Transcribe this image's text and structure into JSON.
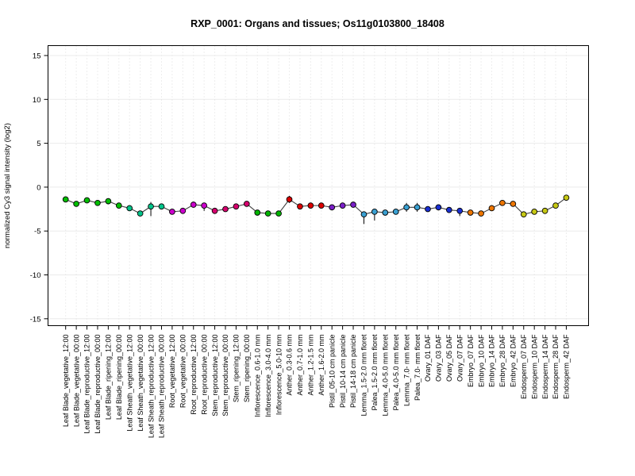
{
  "page_title": "RXP_0001: Organs and tissues; Os11g0103800_18408",
  "chart_data": {
    "type": "line",
    "title": "RXP_0001: Organs and tissues; Os11g0103800_18408",
    "xlabel": "",
    "ylabel": "normalized Cy3 signal intensity (log2)",
    "ylim": [
      -16,
      16
    ],
    "yticks": [
      -15,
      -10,
      -5,
      0,
      5,
      10,
      15
    ],
    "grid": {
      "horizontal": true,
      "vertical": true
    },
    "legend": "none",
    "line_color": "#3F3F3F",
    "error_bar_color": "#000000",
    "categories": [
      "Leaf Blade_vegetative_12:00",
      "Leaf Blade_vegetative_00:00",
      "Leaf Blade_reproductive_12:00",
      "Leaf Blade_reproductive_00:00",
      "Leaf Blade_ripening_12:00",
      "Leaf Blade_ripening_00:00",
      "Leaf Sheath_vegetative_12:00",
      "Leaf Sheath_vegetative_00:00",
      "Leaf Sheath_reproductive_12:00",
      "Leaf Sheath_reproductive_00:00",
      "Root_vegetative_12:00",
      "Root_vegetative_00:00",
      "Root_reproductive_12:00",
      "Root_reproductive_00:00",
      "Stem_reproductive_12:00",
      "Stem_reproductive_00:00",
      "Stem_ripening_12:00",
      "Stem_ripening_00:00",
      "Inflorescence_0.6-1.0 mm",
      "Inflorescence_3.0-4.0 mm",
      "Inflorescence_5.0-10 mm",
      "Anther_0.3-0.6 mm",
      "Anther_0.7-1.0 mm",
      "Anther_1.2-1.5 mm",
      "Anther_1.6-2.0 mm",
      "Pistil_05-10 cm panicle",
      "Pistil_10-14 cm panicle",
      "Pistil_14-18 cm panicle",
      "Lemma_1.5-2.0 mm floret",
      "Palea_1.5-2.0 mm floret",
      "Lemma_4.0-5.0 mm floret",
      "Palea_4.0-5.0 mm floret",
      "Lemma_7.0- mm floret",
      "Palea_7.0- mm floret",
      "Ovary_01 DAF",
      "Ovary_03 DAF",
      "Ovary_05 DAF",
      "Ovary_07 DAF",
      "Embryo_07 DAF",
      "Embryo_10 DAF",
      "Embryo_14 DAF",
      "Embryo_28 DAF",
      "Embryo_42 DAF",
      "Endosperm_07 DAF",
      "Endosperm_10 DAF",
      "Endosperm_14 DAF",
      "Endosperm_28 DAF",
      "Endosperm_42 DAF"
    ],
    "values": [
      -1.4,
      -1.9,
      -1.5,
      -1.8,
      -1.6,
      -2.1,
      -2.4,
      -3.0,
      -2.2,
      -2.2,
      -2.8,
      -2.7,
      -2.0,
      -2.1,
      -2.7,
      -2.5,
      -2.2,
      -1.9,
      -2.9,
      -3.0,
      -3.0,
      -1.4,
      -2.2,
      -2.1,
      -2.1,
      -2.3,
      -2.1,
      -2.0,
      -3.1,
      -2.8,
      -2.9,
      -2.8,
      -2.3,
      -2.3,
      -2.5,
      -2.3,
      -2.6,
      -2.7,
      -2.9,
      -3.0,
      -2.4,
      -1.8,
      -1.9,
      -3.1,
      -2.8,
      -2.7,
      -2.1,
      -1.2
    ],
    "err_up": [
      0.15,
      0.2,
      0.15,
      0.15,
      0.15,
      0.15,
      0.2,
      0.2,
      0.5,
      0.2,
      0.15,
      0.15,
      0.3,
      0.2,
      0.3,
      0.2,
      0.2,
      0.3,
      0.15,
      0.15,
      0.15,
      0.4,
      0.2,
      0.2,
      0.2,
      0.3,
      0.2,
      0.3,
      0.3,
      0.2,
      0.2,
      0.2,
      0.5,
      0.5,
      0.3,
      0.2,
      0.2,
      0.3,
      0.2,
      0.3,
      0.3,
      0.2,
      0.3,
      0.3,
      0.2,
      0.2,
      0.3,
      0.2
    ],
    "err_dn": [
      0.15,
      0.3,
      0.15,
      0.15,
      0.15,
      0.15,
      0.2,
      0.2,
      1.1,
      0.2,
      0.15,
      0.15,
      0.3,
      0.6,
      0.3,
      0.2,
      0.2,
      0.3,
      0.15,
      0.15,
      0.15,
      0.4,
      0.2,
      0.2,
      0.2,
      0.3,
      0.2,
      0.3,
      1.1,
      1.0,
      0.2,
      0.2,
      0.5,
      0.5,
      0.3,
      0.2,
      0.2,
      0.6,
      0.2,
      0.3,
      0.3,
      0.2,
      0.3,
      0.3,
      0.2,
      0.2,
      0.3,
      0.2
    ],
    "marker_colors": [
      "#00BE00",
      "#00BE00",
      "#00BE00",
      "#00BE00",
      "#00BE00",
      "#00BE00",
      "#00C389",
      "#00C389",
      "#00C389",
      "#00C389",
      "#CC00CC",
      "#CC00CC",
      "#CC00CC",
      "#CC00CC",
      "#D6006E",
      "#D6006E",
      "#D6006E",
      "#D6006E",
      "#00B400",
      "#00B400",
      "#00B400",
      "#DC0000",
      "#DC0000",
      "#DC0000",
      "#DC0000",
      "#7A1FC8",
      "#7A1FC8",
      "#7A1FC8",
      "#3AA0D2",
      "#3AA0D2",
      "#3AA0D2",
      "#3AA0D2",
      "#3AA0D2",
      "#3AA0D2",
      "#1A2FD2",
      "#1A2FD2",
      "#1A2FD2",
      "#1A2FD2",
      "#EE7600",
      "#EE7600",
      "#EE7600",
      "#EE7600",
      "#EE7600",
      "#C6C814",
      "#C6C814",
      "#C6C814",
      "#C6C814",
      "#C6C814"
    ],
    "group_colors": {
      "Leaf Blade": "#00BE00",
      "Leaf Sheath": "#00C389",
      "Root": "#CC00CC",
      "Stem": "#D6006E",
      "Inflorescence": "#00B400",
      "Anther": "#DC0000",
      "Pistil": "#7A1FC8",
      "Lemma/Palea": "#3AA0D2",
      "Ovary": "#1A2FD2",
      "Embryo": "#EE7600",
      "Endosperm": "#C6C814"
    }
  }
}
